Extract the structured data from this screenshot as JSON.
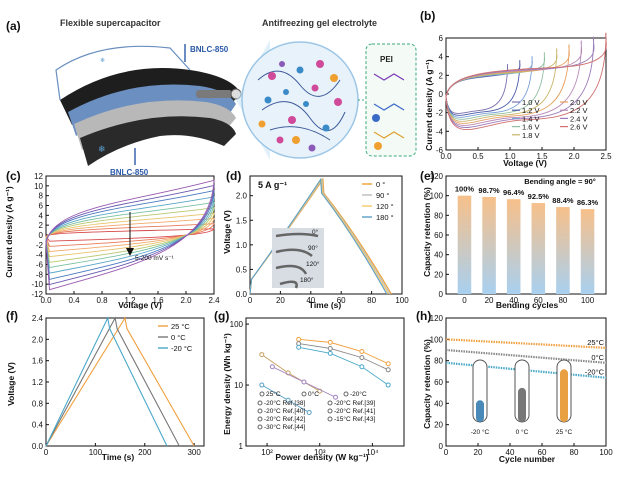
{
  "figure": {
    "panel_letters": [
      "(a)",
      "(b)",
      "(c)",
      "(d)",
      "(e)",
      "(f)",
      "(g)",
      "(h)"
    ]
  },
  "panel_a": {
    "title_left": "Flexible supercapacitor",
    "title_right": "Antifreezing gel electrolyte",
    "electrode_top": "BNLC-850",
    "electrode_bottom": "BNLC-850",
    "polymer": "PEI"
  },
  "chart_data": [
    {
      "panel": "b",
      "type": "line",
      "xlabel": "Voltage (V)",
      "ylabel": "Current density (A g⁻¹)",
      "xlim": [
        0,
        2.6
      ],
      "ylim": [
        -6,
        6
      ],
      "xticks": [
        "0.0",
        "0.5",
        "1.0",
        "1.5",
        "2.0",
        "2.5"
      ],
      "yticks": [
        "6",
        "4",
        "2",
        "0",
        "-2",
        "-4",
        "-6"
      ],
      "series": [
        {
          "name": "1.0 V",
          "vmax": 1.0,
          "color": "#7a6fb0"
        },
        {
          "name": "1.2 V",
          "vmax": 1.2,
          "color": "#4a5aa8"
        },
        {
          "name": "1.4 V",
          "vmax": 1.4,
          "color": "#7aa0d8"
        },
        {
          "name": "1.6 V",
          "vmax": 1.6,
          "color": "#8fc0a0"
        },
        {
          "name": "1.8 V",
          "vmax": 1.8,
          "color": "#c9b46a"
        },
        {
          "name": "2.0 V",
          "vmax": 2.0,
          "color": "#e8a060"
        },
        {
          "name": "2.2 V",
          "vmax": 2.2,
          "color": "#b88ab8"
        },
        {
          "name": "2.4 V",
          "vmax": 2.4,
          "color": "#9b7ab8"
        },
        {
          "name": "2.6 V",
          "vmax": 2.6,
          "color": "#d07070"
        }
      ]
    },
    {
      "panel": "c",
      "type": "line",
      "xlabel": "Voltage (V)",
      "ylabel": "Current density (A g⁻¹)",
      "xlim": [
        0,
        2.4
      ],
      "ylim": [
        -12,
        12
      ],
      "xticks": [
        "0.0",
        "0.4",
        "0.8",
        "1.2",
        "1.6",
        "2.0",
        "2.4"
      ],
      "yticks": [
        "12",
        "10",
        "8",
        "6",
        "4",
        "2",
        "0",
        "-2",
        "-4",
        "-6",
        "-8",
        "-10",
        "-12"
      ],
      "annotation": "5-200 mV s⁻¹",
      "amplitudes": [
        1.2,
        2.2,
        3.2,
        4.2,
        5.3,
        6.3,
        7.4,
        8.6,
        9.6,
        10.6
      ]
    },
    {
      "panel": "d",
      "type": "line",
      "title": "5 A g⁻¹",
      "xlabel": "Time (s)",
      "ylabel": "Voltage (V)",
      "xlim": [
        0,
        100
      ],
      "ylim": [
        0,
        2.4
      ],
      "xticks": [
        "0",
        "20",
        "40",
        "60",
        "80",
        "100"
      ],
      "yticks": [
        "0.0",
        "0.5",
        "1.0",
        "1.5",
        "2.0"
      ],
      "series": [
        {
          "name": "0 °",
          "color": "#f0a030",
          "peak_t": 48,
          "end_t": 93
        },
        {
          "name": "90 °",
          "color": "#bbbbbb",
          "peak_t": 47.5,
          "end_t": 92
        },
        {
          "name": "120 °",
          "color": "#f5c96a",
          "peak_t": 47,
          "end_t": 91
        },
        {
          "name": "180 °",
          "color": "#5aa0c8",
          "peak_t": 46.5,
          "end_t": 90
        }
      ],
      "inset_labels": [
        "0°",
        "90°",
        "120°",
        "180°"
      ]
    },
    {
      "panel": "e",
      "type": "bar",
      "title": "Bending angle = 90°",
      "xlabel": "Bending cycles",
      "ylabel": "Capacity retention (%)",
      "ylim": [
        0,
        120
      ],
      "yticks": [
        "0",
        "20",
        "40",
        "60",
        "80",
        "100",
        "120"
      ],
      "categories": [
        "0",
        "20",
        "40",
        "60",
        "80",
        "100"
      ],
      "values": [
        100,
        98.7,
        96.4,
        92.5,
        88.4,
        86.3
      ],
      "data_labels": [
        "100%",
        "98.7%",
        "96.4%",
        "92.5%",
        "88.4%",
        "86.3%"
      ]
    },
    {
      "panel": "f",
      "type": "line",
      "xlabel": "Time (s)",
      "ylabel": "Voltage (V)",
      "xlim": [
        0,
        320
      ],
      "ylim": [
        0,
        2.4
      ],
      "xticks": [
        "0",
        "100",
        "200",
        "300"
      ],
      "yticks": [
        "0.0",
        "0.4",
        "0.8",
        "1.2",
        "1.6",
        "2.0",
        "2.4"
      ],
      "series": [
        {
          "name": "25 °C",
          "color": "#f0a040",
          "peak_t": 160,
          "end_t": 300
        },
        {
          "name": "0 °C",
          "color": "#777777",
          "peak_t": 140,
          "end_t": 270
        },
        {
          "name": "-20 °C",
          "color": "#4aa8c8",
          "peak_t": 125,
          "end_t": 245
        }
      ]
    },
    {
      "panel": "g",
      "type": "scatter",
      "xlabel": "Power density (W kg⁻¹)",
      "ylabel": "Energy density (Wh kg⁻¹)",
      "xscale": "log",
      "yscale": "log",
      "xticks": [
        "10²",
        "10³",
        "10⁴"
      ],
      "yticks": [
        "1",
        "10",
        "100"
      ],
      "legend": [
        "25°C",
        "0°C",
        "-20°C",
        "-20°C Ref.[38]",
        "-20°C Ref.[39]",
        "-20°C Ref.[40]",
        "-20°C Ref.[41]",
        "-20°C Ref.[42]",
        "-15°C Ref.[43]",
        "-30°C Ref.[44]"
      ]
    },
    {
      "panel": "h",
      "type": "line",
      "xlabel": "Cycle number",
      "ylabel": "Capacity retention (%)",
      "xlim": [
        0,
        100
      ],
      "ylim": [
        0,
        120
      ],
      "xticks": [
        "0",
        "20",
        "40",
        "60",
        "80",
        "100"
      ],
      "yticks": [
        "0",
        "20",
        "40",
        "60",
        "80",
        "100",
        "120"
      ],
      "series": [
        {
          "name": "25°C",
          "color": "#f0a040",
          "start": 100,
          "end": 92
        },
        {
          "name": "0°C",
          "color": "#888888",
          "start": 90,
          "end": 78
        },
        {
          "name": "-20°C",
          "color": "#4aa8c8",
          "start": 78,
          "end": 64
        }
      ],
      "thermometer_labels": [
        "-20 °C",
        "0 °C",
        "25 °C"
      ]
    }
  ]
}
